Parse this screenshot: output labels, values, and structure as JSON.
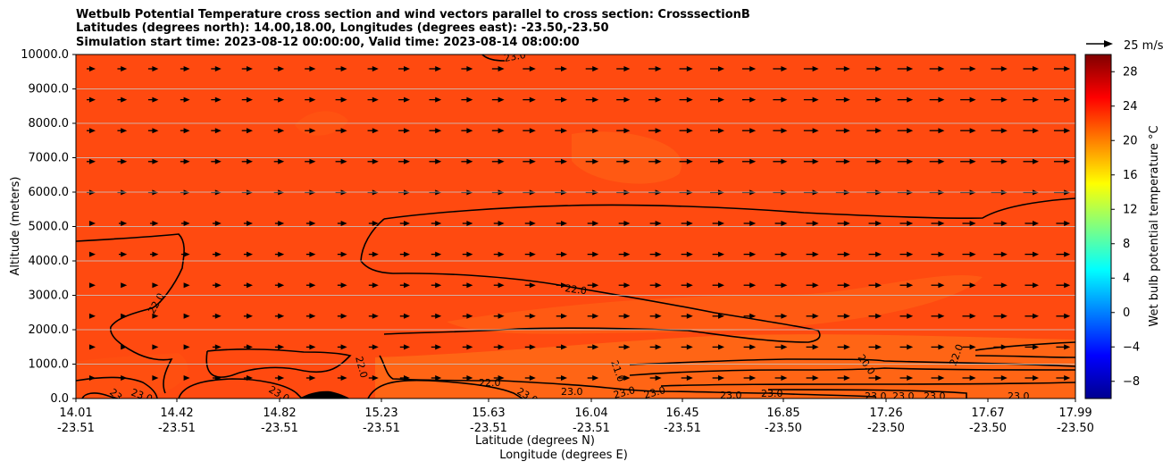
{
  "titles": {
    "line1": "Wetbulb Potential Temperature cross section and wind vectors parallel to cross section: CrosssectionB",
    "line2": "Latitudes (degrees north): 14.00,18.00, Longitudes (degrees east): -23.50,-23.50",
    "line3": "Simulation start time: 2023-08-12 00:00:00, Valid time: 2023-08-14 08:00:00"
  },
  "chart_data": {
    "type": "contour",
    "ylabel": "Altitude (meters)",
    "xlabel_lat": "Latitude (degrees N)",
    "xlabel_lon": "Longitude (degrees E)",
    "ylim": [
      0,
      10000
    ],
    "y_ticks": [
      "0.0",
      "1000.0",
      "2000.0",
      "3000.0",
      "4000.0",
      "5000.0",
      "6000.0",
      "7000.0",
      "8000.0",
      "9000.0",
      "10000.0"
    ],
    "x_ticks": [
      {
        "lat": "14.01",
        "lon": "-23.51"
      },
      {
        "lat": "14.42",
        "lon": "-23.51"
      },
      {
        "lat": "14.82",
        "lon": "-23.51"
      },
      {
        "lat": "15.23",
        "lon": "-23.51"
      },
      {
        "lat": "15.63",
        "lon": "-23.51"
      },
      {
        "lat": "16.04",
        "lon": "-23.51"
      },
      {
        "lat": "16.45",
        "lon": "-23.51"
      },
      {
        "lat": "16.85",
        "lon": "-23.50"
      },
      {
        "lat": "17.26",
        "lon": "-23.50"
      },
      {
        "lat": "17.67",
        "lon": "-23.50"
      },
      {
        "lat": "17.99",
        "lon": "-23.50"
      }
    ],
    "grid": "horizontal",
    "colorbar": {
      "label": "Wet bulb potential temperature °C",
      "range": [
        -10,
        30
      ],
      "ticks": [
        "28",
        "24",
        "20",
        "16",
        "12",
        "8",
        "4",
        "0",
        "−4",
        "−8"
      ],
      "colors": [
        "#00008f",
        "#0000ff",
        "#0080ff",
        "#00ffff",
        "#80ff80",
        "#ffff00",
        "#ff8000",
        "#ff0000",
        "#800000"
      ]
    },
    "quiver_key": {
      "label": "25 m/s"
    },
    "contour_labels": [
      {
        "text": "22.0"
      },
      {
        "text": "22.0"
      },
      {
        "text": "22.0"
      },
      {
        "text": "22.0"
      },
      {
        "text": "21.0"
      },
      {
        "text": "20.0"
      },
      {
        "text": "22.0"
      },
      {
        "text": "23.0"
      },
      {
        "text": "23.0"
      },
      {
        "text": "23.0"
      },
      {
        "text": "23.0"
      },
      {
        "text": "23.0"
      },
      {
        "text": "23.0"
      },
      {
        "text": "23.0"
      },
      {
        "text": "23.0"
      },
      {
        "text": "23.0"
      },
      {
        "text": "23.0"
      },
      {
        "text": "23.0"
      },
      {
        "text": "23.0"
      },
      {
        "text": "23.0"
      },
      {
        "text": "23.0"
      }
    ]
  }
}
